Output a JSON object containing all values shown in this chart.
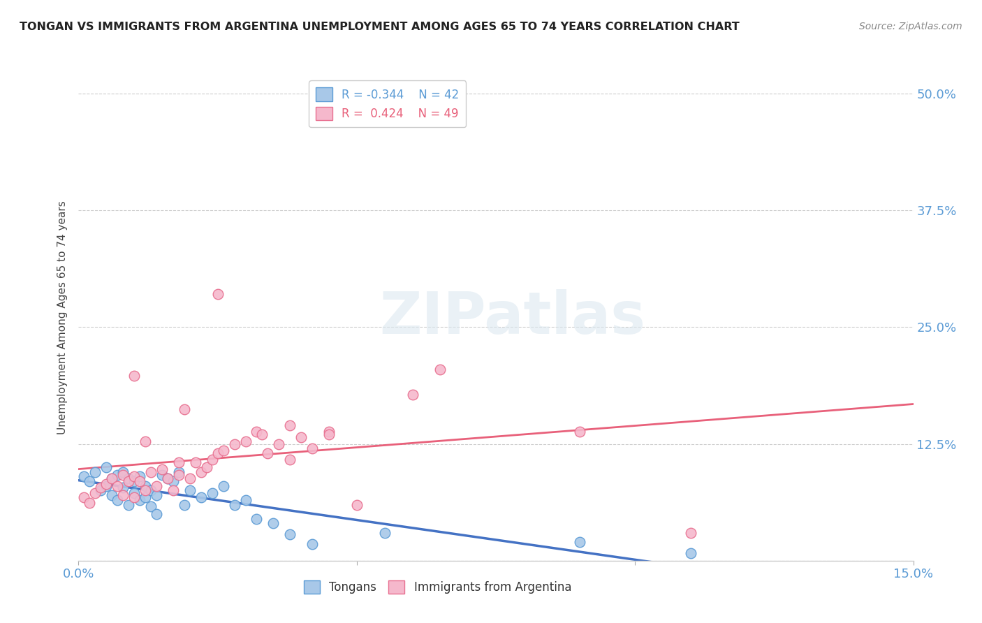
{
  "title": "TONGAN VS IMMIGRANTS FROM ARGENTINA UNEMPLOYMENT AMONG AGES 65 TO 74 YEARS CORRELATION CHART",
  "source": "Source: ZipAtlas.com",
  "ylabel": "Unemployment Among Ages 65 to 74 years",
  "xlim": [
    0.0,
    0.15
  ],
  "ylim": [
    0.0,
    0.52
  ],
  "xticks": [
    0.0,
    0.05,
    0.1,
    0.15
  ],
  "xtick_labels": [
    "0.0%",
    "",
    "",
    "15.0%"
  ],
  "yticks": [
    0.0,
    0.125,
    0.25,
    0.375,
    0.5
  ],
  "ytick_labels_right": [
    "",
    "12.5%",
    "25.0%",
    "37.5%",
    "50.0%"
  ],
  "color_tongan_fill": "#a8c8e8",
  "color_tongan_edge": "#5b9bd5",
  "color_argentina_fill": "#f5b8cc",
  "color_argentina_edge": "#e87090",
  "color_line_tongan": "#4472c4",
  "color_line_argentina": "#e8607a",
  "color_tick_label": "#5b9bd5",
  "watermark_text": "ZIPatlas",
  "background_color": "#ffffff",
  "grid_color": "#cccccc",
  "tongan_x": [
    0.001,
    0.002,
    0.003,
    0.004,
    0.005,
    0.005,
    0.006,
    0.006,
    0.007,
    0.007,
    0.008,
    0.008,
    0.009,
    0.009,
    0.01,
    0.01,
    0.011,
    0.011,
    0.012,
    0.012,
    0.013,
    0.013,
    0.014,
    0.014,
    0.015,
    0.016,
    0.017,
    0.018,
    0.019,
    0.02,
    0.022,
    0.024,
    0.026,
    0.028,
    0.03,
    0.032,
    0.035,
    0.038,
    0.042,
    0.055,
    0.09,
    0.11
  ],
  "tongan_y": [
    0.09,
    0.085,
    0.095,
    0.075,
    0.1,
    0.08,
    0.088,
    0.07,
    0.092,
    0.065,
    0.095,
    0.078,
    0.088,
    0.06,
    0.085,
    0.072,
    0.09,
    0.065,
    0.08,
    0.068,
    0.075,
    0.058,
    0.07,
    0.05,
    0.092,
    0.088,
    0.085,
    0.095,
    0.06,
    0.075,
    0.068,
    0.072,
    0.08,
    0.06,
    0.065,
    0.045,
    0.04,
    0.028,
    0.018,
    0.03,
    0.02,
    0.008
  ],
  "argentina_x": [
    0.001,
    0.002,
    0.003,
    0.004,
    0.005,
    0.006,
    0.007,
    0.008,
    0.008,
    0.009,
    0.01,
    0.01,
    0.011,
    0.012,
    0.013,
    0.014,
    0.015,
    0.016,
    0.017,
    0.018,
    0.019,
    0.02,
    0.021,
    0.022,
    0.023,
    0.024,
    0.025,
    0.026,
    0.028,
    0.03,
    0.032,
    0.034,
    0.036,
    0.038,
    0.04,
    0.042,
    0.045,
    0.05,
    0.038,
    0.045,
    0.06,
    0.065,
    0.033,
    0.01,
    0.012,
    0.018,
    0.025,
    0.09,
    0.11
  ],
  "argentina_y": [
    0.068,
    0.062,
    0.072,
    0.078,
    0.082,
    0.088,
    0.08,
    0.092,
    0.07,
    0.085,
    0.09,
    0.068,
    0.085,
    0.075,
    0.095,
    0.08,
    0.098,
    0.088,
    0.075,
    0.092,
    0.162,
    0.088,
    0.105,
    0.095,
    0.1,
    0.108,
    0.115,
    0.118,
    0.125,
    0.128,
    0.138,
    0.115,
    0.125,
    0.108,
    0.132,
    0.12,
    0.138,
    0.06,
    0.145,
    0.135,
    0.178,
    0.205,
    0.135,
    0.198,
    0.128,
    0.105,
    0.285,
    0.138,
    0.03
  ]
}
